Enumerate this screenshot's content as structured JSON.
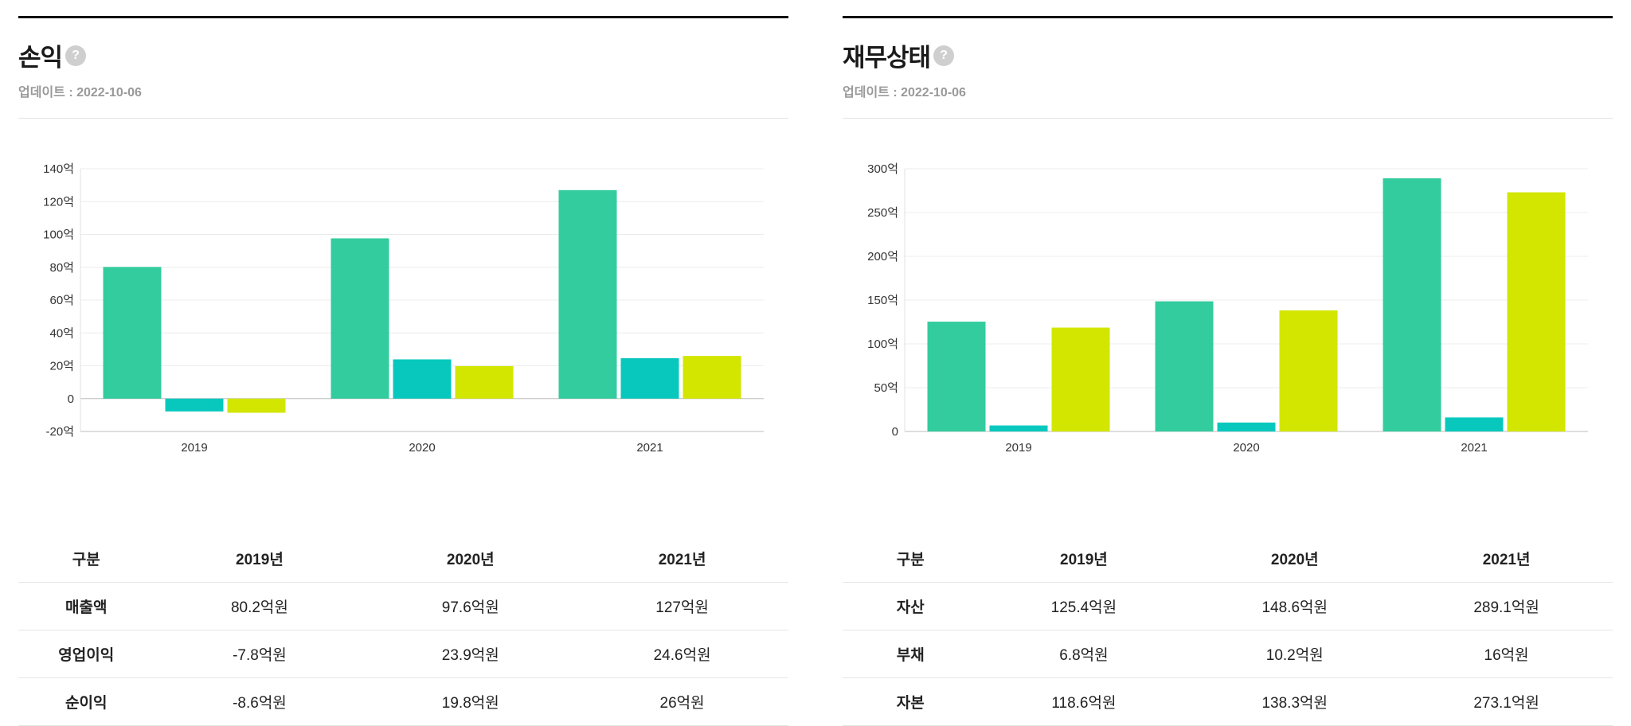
{
  "left": {
    "title": "손익",
    "help": "?",
    "updated": "업데이트 : 2022-10-06",
    "table": {
      "headers": [
        "구분",
        "2019년",
        "2020년",
        "2021년"
      ],
      "rows": [
        [
          "매출액",
          "80.2억원",
          "97.6억원",
          "127억원"
        ],
        [
          "영업이익",
          "-7.8억원",
          "23.9억원",
          "24.6억원"
        ],
        [
          "순이익",
          "-8.6억원",
          "19.8억원",
          "26억원"
        ]
      ]
    }
  },
  "right": {
    "title": "재무상태",
    "help": "?",
    "updated": "업데이트 : 2022-10-06",
    "table": {
      "headers": [
        "구분",
        "2019년",
        "2020년",
        "2021년"
      ],
      "rows": [
        [
          "자산",
          "125.4억원",
          "148.6억원",
          "289.1억원"
        ],
        [
          "부채",
          "6.8억원",
          "10.2억원",
          "16억원"
        ],
        [
          "자본",
          "118.6억원",
          "138.3억원",
          "273.1억원"
        ]
      ]
    }
  },
  "colors": {
    "series1": "#33cc9e",
    "series2": "#08c8be",
    "series3": "#d2e600"
  },
  "chart_data": [
    {
      "type": "bar",
      "categories": [
        "2019",
        "2020",
        "2021"
      ],
      "series": [
        {
          "values": [
            80.2,
            97.6,
            127
          ]
        },
        {
          "values": [
            -7.8,
            23.9,
            24.6
          ]
        },
        {
          "values": [
            -8.6,
            19.8,
            26
          ]
        }
      ],
      "ylim": [
        -20,
        140
      ],
      "yticks": [
        -20,
        0,
        20,
        40,
        60,
        80,
        100,
        120,
        140
      ],
      "ytick_labels": [
        "-20억",
        "0",
        "20억",
        "40억",
        "60억",
        "80억",
        "100억",
        "120억",
        "140억"
      ],
      "grid": true
    },
    {
      "type": "bar",
      "categories": [
        "2019",
        "2020",
        "2021"
      ],
      "series": [
        {
          "values": [
            125.4,
            148.6,
            289.1
          ]
        },
        {
          "values": [
            6.8,
            10.2,
            16
          ]
        },
        {
          "values": [
            118.6,
            138.3,
            273.1
          ]
        }
      ],
      "ylim": [
        0,
        300
      ],
      "yticks": [
        0,
        50,
        100,
        150,
        200,
        250,
        300
      ],
      "ytick_labels": [
        "0",
        "50억",
        "100억",
        "150억",
        "200억",
        "250억",
        "300억"
      ],
      "grid": true
    }
  ]
}
